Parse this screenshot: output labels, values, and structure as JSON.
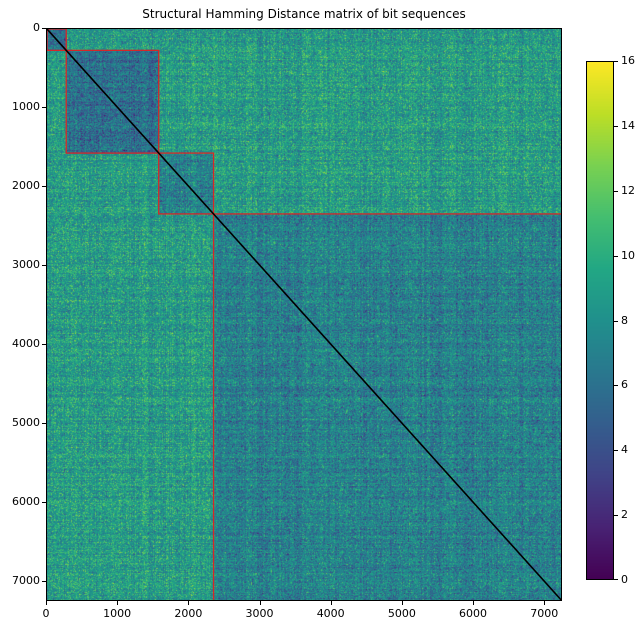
{
  "chart_data": {
    "type": "heatmap",
    "title": "Structural Hamming Distance matrix of bit sequences",
    "xlabel": "",
    "ylabel": "",
    "n": 7250,
    "xlim": [
      0,
      7250
    ],
    "ylim": [
      7250,
      0
    ],
    "x_ticks": [
      0,
      1000,
      2000,
      3000,
      4000,
      5000,
      6000,
      7000
    ],
    "y_ticks": [
      0,
      1000,
      2000,
      3000,
      4000,
      5000,
      6000,
      7000
    ],
    "colormap": "viridis",
    "colorbar": {
      "min": 0,
      "max": 16,
      "ticks": [
        0,
        2,
        4,
        6,
        8,
        10,
        12,
        14,
        16
      ]
    },
    "diagonal": {
      "value": 0,
      "color": "#000000"
    },
    "cluster_boundaries": [
      0,
      270,
      1570,
      2340,
      7250
    ],
    "cluster_box_color": "#d62728",
    "block_mean_values": {
      "within_cluster_1": 6,
      "within_cluster_2": 6,
      "within_cluster_3": 7,
      "within_cluster_4": 7,
      "between_clusters": 9
    }
  }
}
